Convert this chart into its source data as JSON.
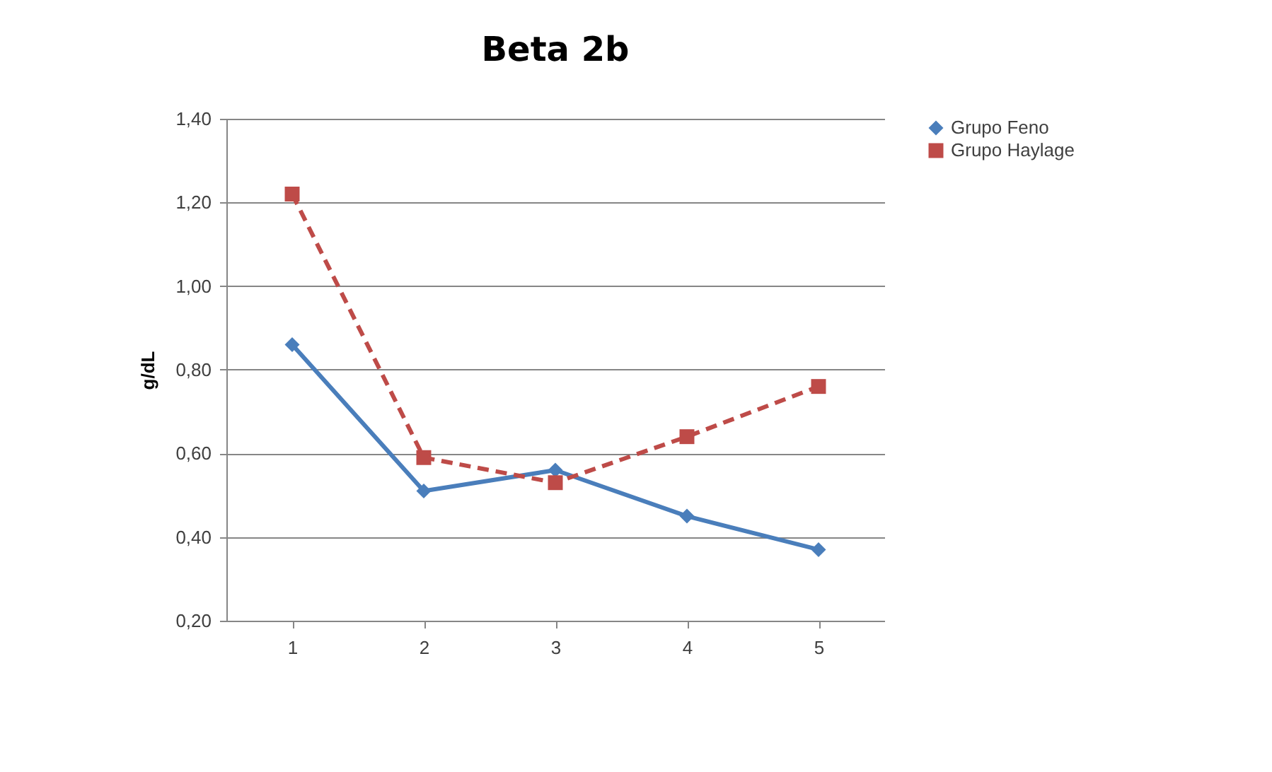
{
  "chart_data": {
    "type": "line",
    "title": "Beta 2b",
    "ylabel": "g/dL",
    "categories": [
      "1",
      "2",
      "3",
      "4",
      "5"
    ],
    "series": [
      {
        "name": "Grupo Feno",
        "color": "#4a7ebb",
        "values": [
          0.86,
          0.51,
          0.56,
          0.45,
          0.37
        ],
        "marker": "diamond",
        "line_style": "solid"
      },
      {
        "name": "Grupo Haylage",
        "color": "#be4b48",
        "values": [
          1.22,
          0.59,
          0.53,
          0.64,
          0.76
        ],
        "marker": "square",
        "line_style": "dashed"
      }
    ],
    "ylim": [
      0.2,
      1.4
    ],
    "yticks": [
      {
        "value": 0.2,
        "label": "0,20"
      },
      {
        "value": 0.4,
        "label": "0,40"
      },
      {
        "value": 0.6,
        "label": "0,60"
      },
      {
        "value": 0.8,
        "label": "0,80"
      },
      {
        "value": 1.0,
        "label": "1,00"
      },
      {
        "value": 1.2,
        "label": "1,20"
      },
      {
        "value": 1.4,
        "label": "1,40"
      }
    ],
    "grid": "y",
    "legend": "right"
  }
}
